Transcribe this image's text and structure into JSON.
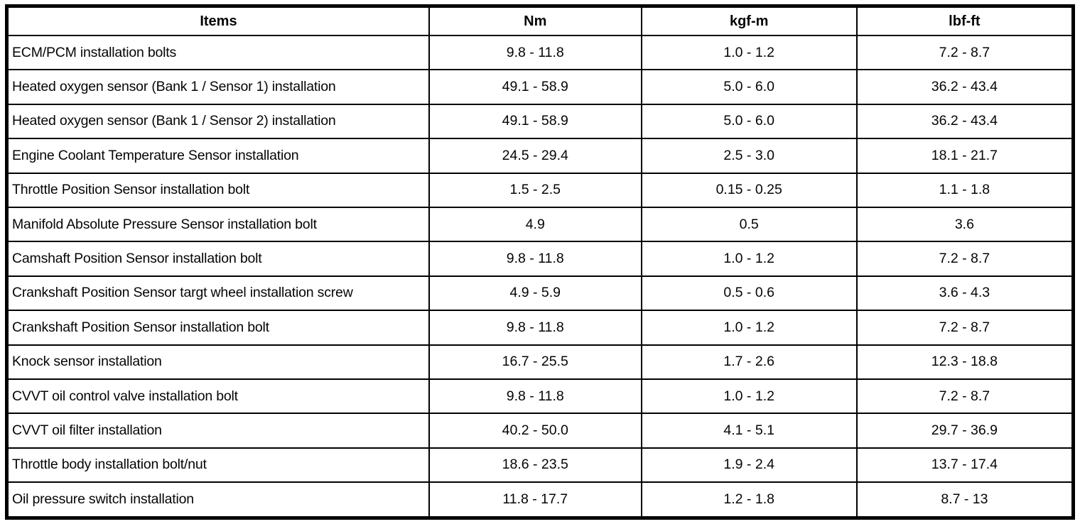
{
  "table": {
    "headers": [
      "Items",
      "Nm",
      "kgf-m",
      "lbf-ft"
    ],
    "rows": [
      {
        "item": "ECM/PCM installation bolts",
        "nm": "9.8 - 11.8",
        "kgfm": "1.0 - 1.2",
        "lbfft": "7.2 - 8.7"
      },
      {
        "item": "Heated oxygen sensor (Bank 1 / Sensor 1) installation",
        "nm": "49.1 - 58.9",
        "kgfm": "5.0 - 6.0",
        "lbfft": "36.2 - 43.4"
      },
      {
        "item": "Heated oxygen sensor (Bank 1 / Sensor 2) installation",
        "nm": "49.1 - 58.9",
        "kgfm": "5.0 - 6.0",
        "lbfft": "36.2 - 43.4"
      },
      {
        "item": "Engine Coolant Temperature Sensor installation",
        "nm": "24.5 - 29.4",
        "kgfm": "2.5 - 3.0",
        "lbfft": "18.1 - 21.7"
      },
      {
        "item": "Throttle Position Sensor installation bolt",
        "nm": "1.5 - 2.5",
        "kgfm": "0.15 - 0.25",
        "lbfft": "1.1 - 1.8"
      },
      {
        "item": "Manifold Absolute Pressure Sensor installation bolt",
        "nm": "4.9",
        "kgfm": "0.5",
        "lbfft": "3.6"
      },
      {
        "item": "Camshaft Position Sensor installation bolt",
        "nm": "9.8 - 11.8",
        "kgfm": "1.0 - 1.2",
        "lbfft": "7.2 - 8.7"
      },
      {
        "item": "Crankshaft Position Sensor targt wheel installation screw",
        "nm": "4.9 - 5.9",
        "kgfm": "0.5 - 0.6",
        "lbfft": "3.6 - 4.3"
      },
      {
        "item": "Crankshaft Position Sensor installation bolt",
        "nm": "9.8 - 11.8",
        "kgfm": "1.0 - 1.2",
        "lbfft": "7.2 - 8.7"
      },
      {
        "item": "Knock sensor installation",
        "nm": "16.7 - 25.5",
        "kgfm": "1.7 - 2.6",
        "lbfft": "12.3 - 18.8"
      },
      {
        "item": "CVVT oil control valve installation bolt",
        "nm": "9.8 - 11.8",
        "kgfm": "1.0 - 1.2",
        "lbfft": "7.2 - 8.7"
      },
      {
        "item": "CVVT oil filter installation",
        "nm": "40.2 - 50.0",
        "kgfm": "4.1 - 5.1",
        "lbfft": "29.7 - 36.9"
      },
      {
        "item": "Throttle body installation bolt/nut",
        "nm": "18.6 - 23.5",
        "kgfm": "1.9 - 2.4",
        "lbfft": "13.7 - 17.4"
      },
      {
        "item": "Oil pressure switch installation",
        "nm": "11.8 - 17.7",
        "kgfm": "1.2 - 1.8",
        "lbfft": "8.7 - 13"
      }
    ]
  }
}
